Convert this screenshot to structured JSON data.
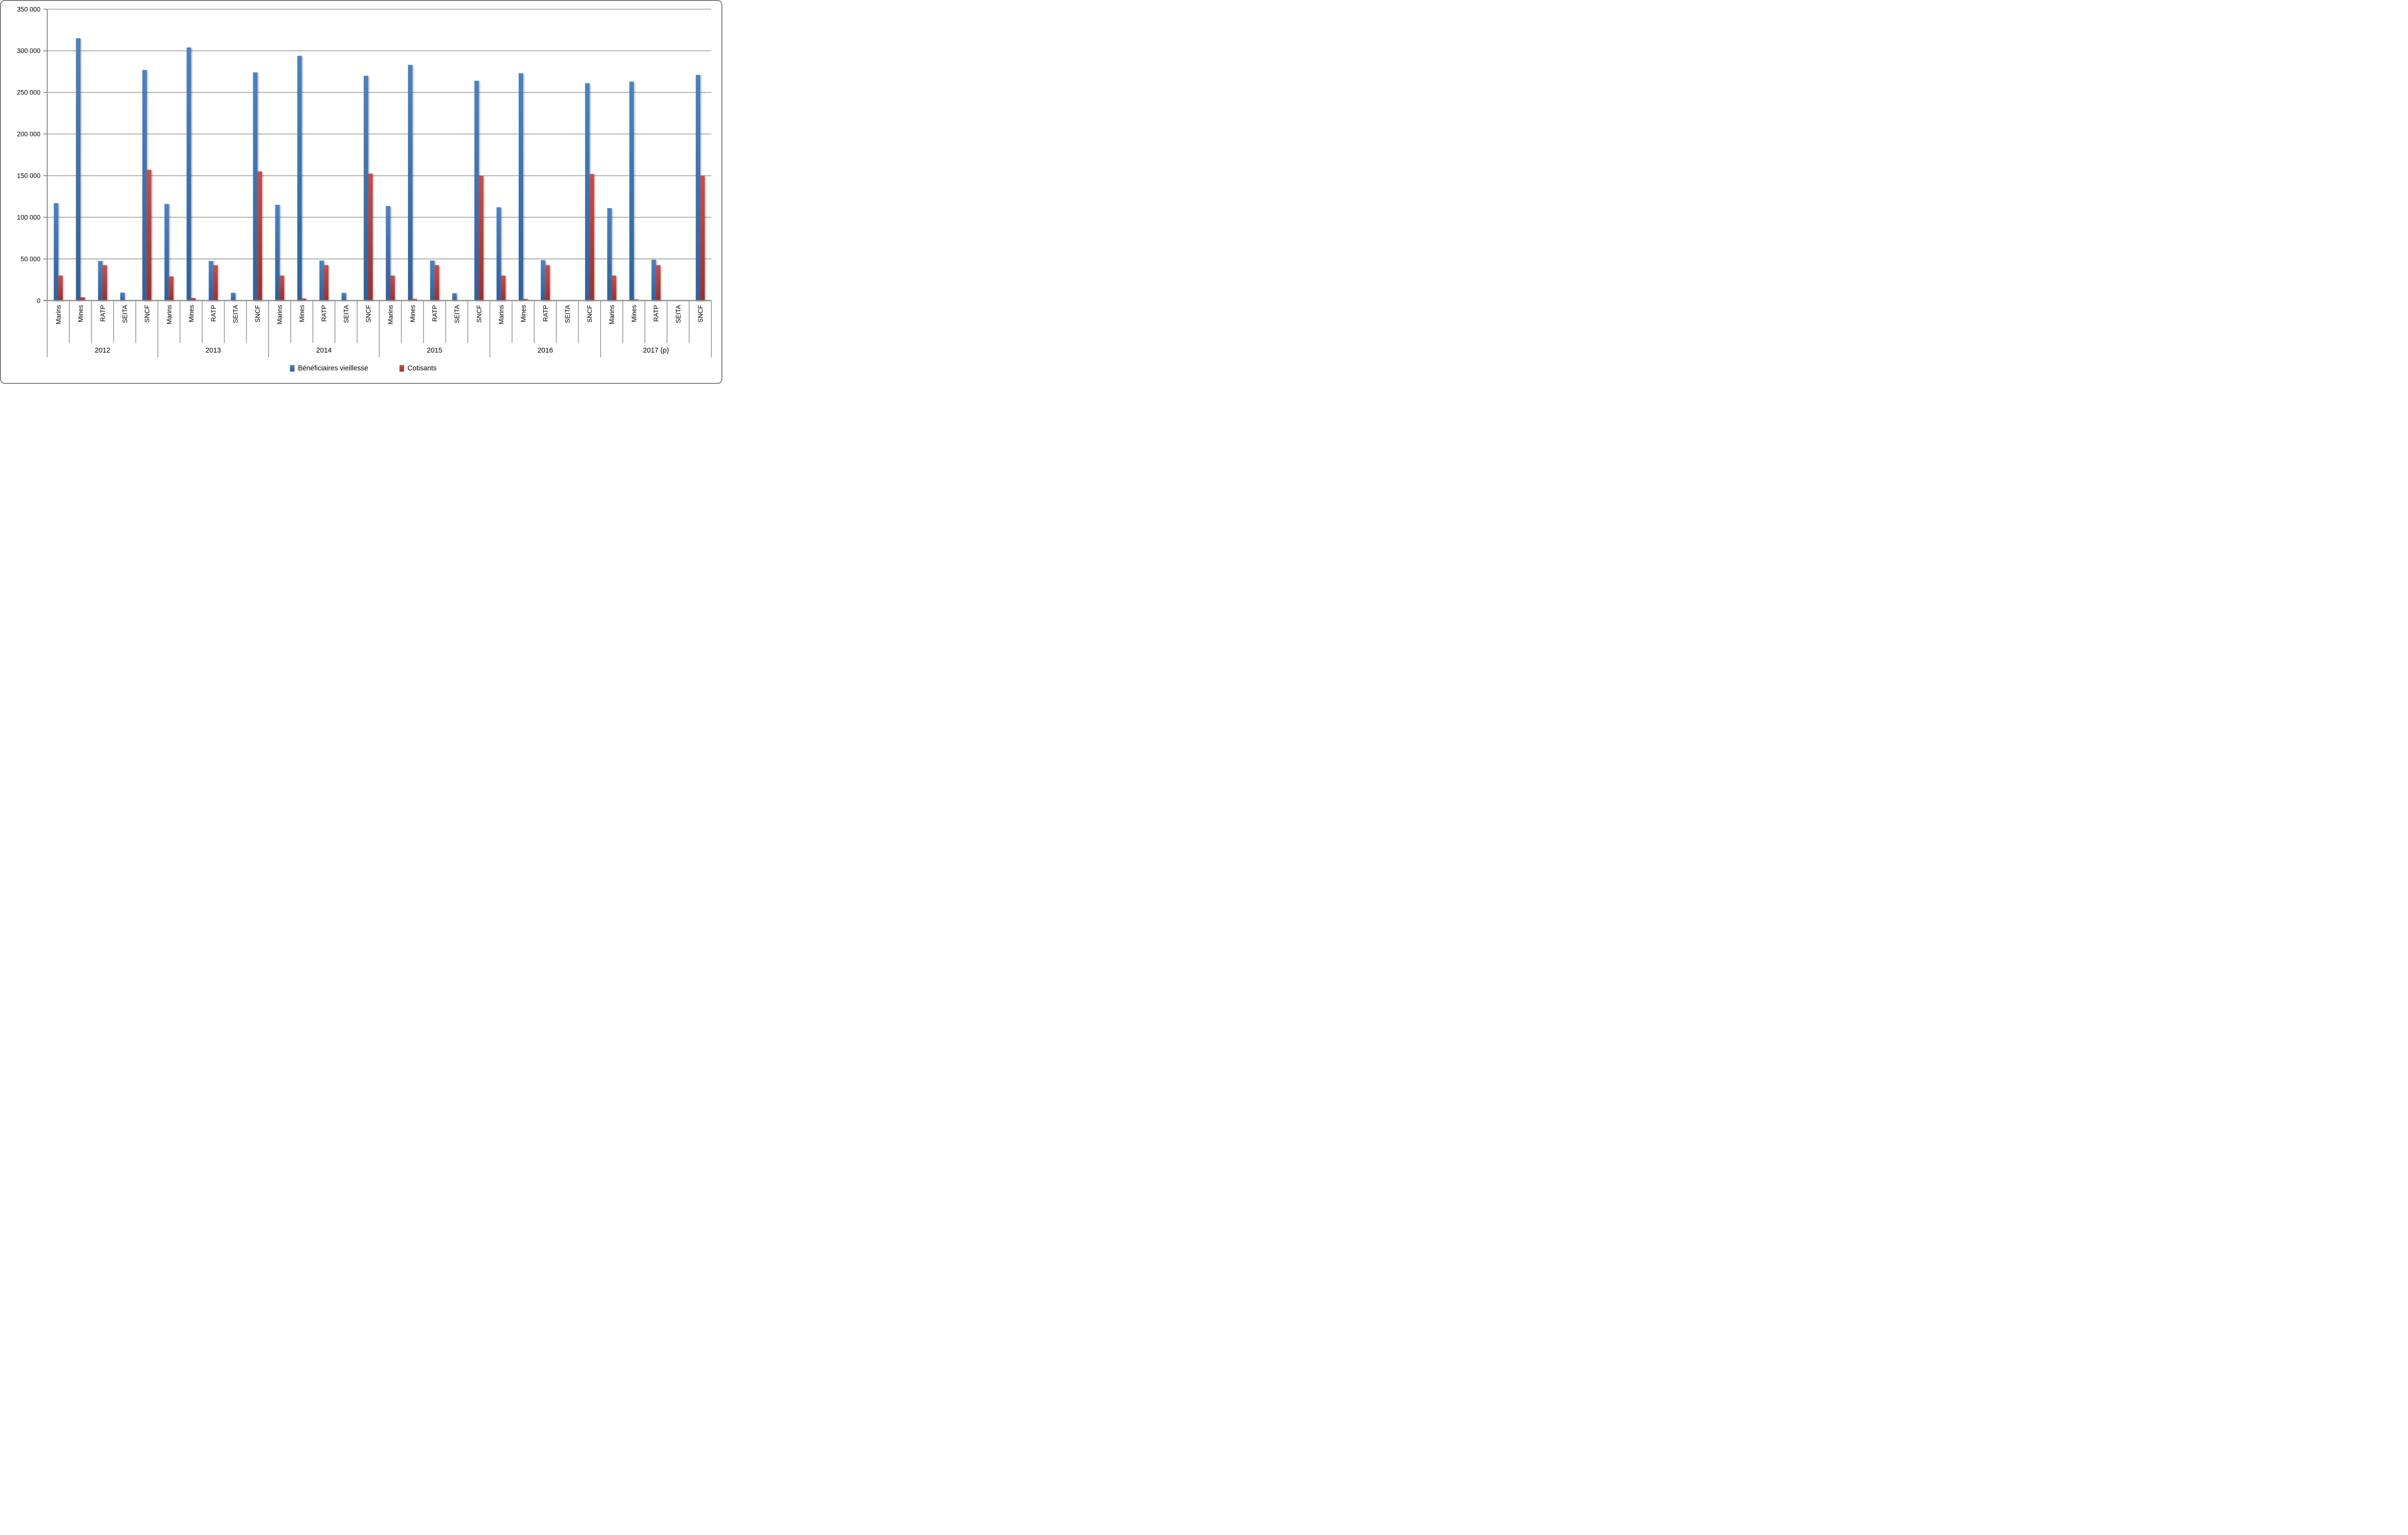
{
  "chart_data": {
    "type": "bar",
    "title": "",
    "years": [
      "2012",
      "2013",
      "2014",
      "2015",
      "2016",
      "2017 (p)"
    ],
    "categories": [
      "Marins",
      "Mines",
      "RATP",
      "SEITA",
      "SNCF"
    ],
    "series": [
      {
        "name": "Bénéficiaires vieillesse",
        "key": "beneficiaires-vieillesse",
        "color": "#3E6FB4",
        "color_top": "#4C82C0",
        "color_bottom": "#31619B",
        "values": [
          [
            117000,
            315000,
            47500,
            9500,
            277000
          ],
          [
            116000,
            304000,
            47500,
            9300,
            274000
          ],
          [
            115000,
            294000,
            48000,
            9200,
            270000
          ],
          [
            113500,
            283000,
            48000,
            8800,
            264000
          ],
          [
            112000,
            273000,
            48500,
            0,
            261000
          ],
          [
            111000,
            263000,
            49000,
            0,
            271000
          ]
        ]
      },
      {
        "name": "Cotisants",
        "key": "cotisants",
        "color": "#B03A35",
        "color_top": "#C4504B",
        "color_bottom": "#9A312D",
        "values": [
          [
            30000,
            4000,
            42500,
            0,
            157000
          ],
          [
            29000,
            3000,
            42500,
            0,
            155000
          ],
          [
            30000,
            2500,
            42500,
            0,
            152500
          ],
          [
            30000,
            2000,
            42500,
            0,
            150000
          ],
          [
            30000,
            2000,
            42500,
            0,
            152000
          ],
          [
            30000,
            1500,
            42500,
            0,
            150000
          ]
        ]
      }
    ],
    "ylim": [
      0,
      350000
    ],
    "ytick_step": 50000,
    "ytick_labels": [
      "0",
      "50 000",
      "100 000",
      "150 000",
      "200 000",
      "250 000",
      "300 000",
      "350 000"
    ],
    "grid": true,
    "legend_position": "bottom",
    "grid_color": "#A6A6A6",
    "axis_color": "#8C8C8C",
    "text_color": "#000000"
  }
}
